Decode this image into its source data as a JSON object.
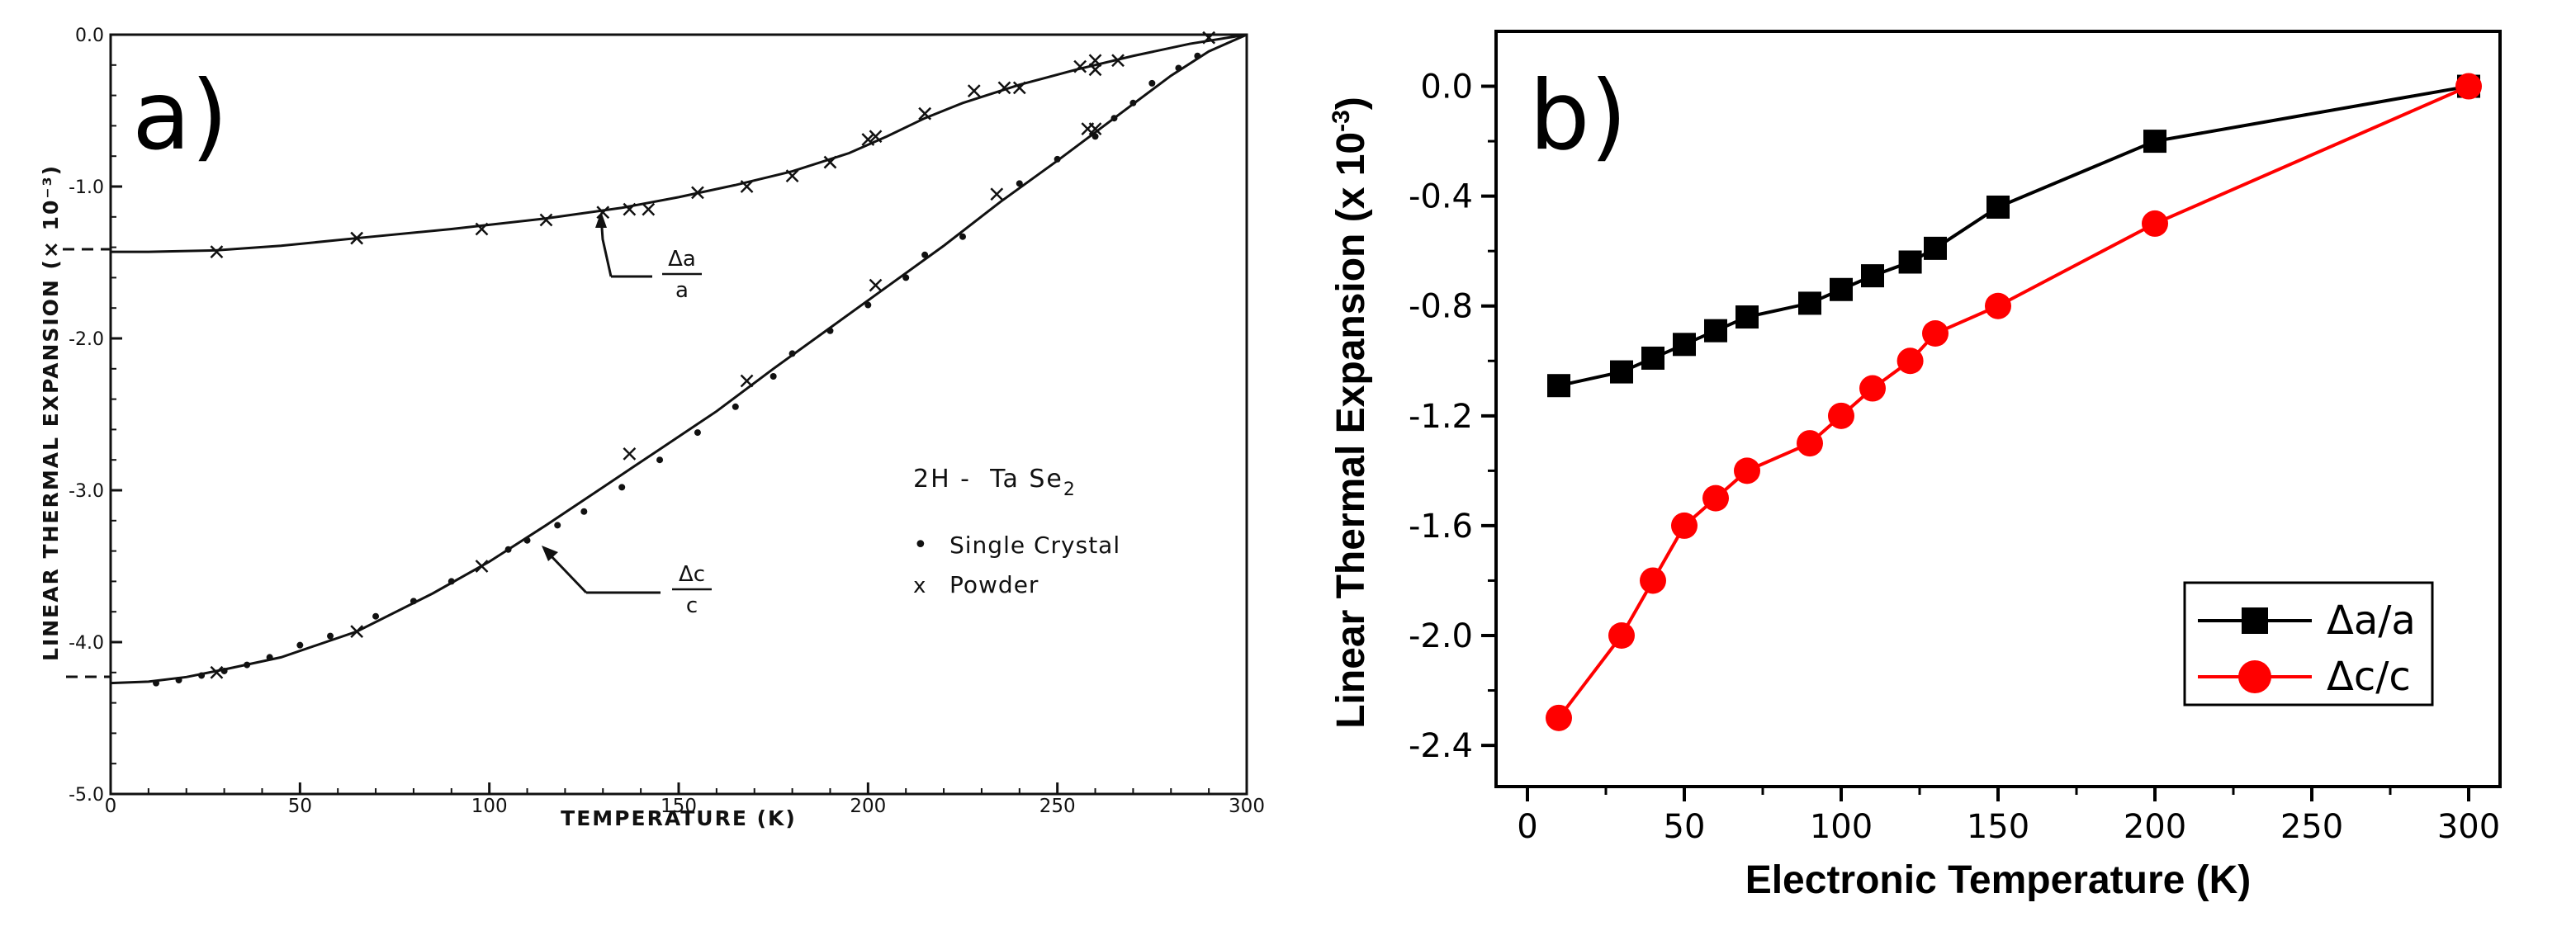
{
  "chart_data": [
    {
      "panel_label": "a)",
      "type": "scatter",
      "title": "",
      "xlabel": "TEMPERATURE  (K)",
      "ylabel": "LINEAR THERMAL EXPANSION (× 10⁻³)",
      "xlim": [
        0,
        300
      ],
      "ylim": [
        -5.0,
        0.0
      ],
      "x_ticks": [
        "0",
        "50",
        "100",
        "150",
        "200",
        "250",
        "300"
      ],
      "y_ticks": [
        "0.0",
        "-1.0",
        "-2.0",
        "-3.0",
        "-4.0",
        "-5.0"
      ],
      "legend_title": "2H -  Ta Se",
      "legend_title_subscript": "2",
      "legend_entries": [
        {
          "symbol": "•",
          "label": "Single Crystal"
        },
        {
          "symbol": "x",
          "label": "Powder"
        }
      ],
      "annotations": [
        {
          "numerator": "Δa",
          "denominator": "a",
          "curve": "a"
        },
        {
          "numerator": "Δc",
          "denominator": "c",
          "curve": "c"
        }
      ],
      "series": [
        {
          "name": "Δa/a fit",
          "kind": "curve",
          "x": [
            0,
            10,
            28,
            45,
            65,
            90,
            115,
            135,
            150,
            165,
            180,
            195,
            205,
            215,
            225,
            240,
            255,
            270,
            285,
            300
          ],
          "y": [
            -1.43,
            -1.43,
            -1.42,
            -1.39,
            -1.34,
            -1.28,
            -1.21,
            -1.14,
            -1.07,
            -0.99,
            -0.9,
            -0.78,
            -0.67,
            -0.55,
            -0.45,
            -0.33,
            -0.23,
            -0.14,
            -0.06,
            0.0
          ]
        },
        {
          "name": "Δa/a powder",
          "kind": "x-marks",
          "x": [
            28,
            65,
            98,
            115,
            130,
            137,
            142,
            155,
            168,
            180,
            190,
            200,
            202,
            215,
            228,
            236,
            240,
            256,
            260,
            260,
            266
          ],
          "y": [
            -1.43,
            -1.34,
            -1.28,
            -1.22,
            -1.17,
            -1.15,
            -1.15,
            -1.04,
            -1.0,
            -0.93,
            -0.84,
            -0.69,
            -0.67,
            -0.52,
            -0.37,
            -0.35,
            -0.35,
            -0.21,
            -0.17,
            -0.23,
            -0.17
          ]
        },
        {
          "name": "Δc/c fit",
          "kind": "curve",
          "x": [
            0,
            10,
            20,
            30,
            45,
            65,
            85,
            100,
            115,
            130,
            145,
            160,
            175,
            190,
            205,
            220,
            235,
            250,
            265,
            280,
            290,
            300
          ],
          "y": [
            -4.27,
            -4.26,
            -4.23,
            -4.18,
            -4.1,
            -3.93,
            -3.68,
            -3.47,
            -3.23,
            -2.98,
            -2.73,
            -2.48,
            -2.2,
            -1.93,
            -1.66,
            -1.39,
            -1.1,
            -0.83,
            -0.55,
            -0.27,
            -0.11,
            0.0
          ]
        },
        {
          "name": "Δc/c single crystal",
          "kind": "dots",
          "x": [
            12,
            18,
            24,
            30,
            36,
            42,
            50,
            58,
            70,
            80,
            90,
            105,
            110,
            118,
            125,
            135,
            145,
            155,
            165,
            175,
            180,
            190,
            200,
            210,
            215,
            225,
            240,
            250,
            260,
            265,
            270,
            275,
            282,
            287
          ],
          "y": [
            -4.27,
            -4.25,
            -4.22,
            -4.19,
            -4.15,
            -4.1,
            -4.02,
            -3.96,
            -3.83,
            -3.73,
            -3.6,
            -3.39,
            -3.33,
            -3.23,
            -3.14,
            -2.98,
            -2.8,
            -2.62,
            -2.45,
            -2.25,
            -2.1,
            -1.95,
            -1.78,
            -1.6,
            -1.45,
            -1.33,
            -0.98,
            -0.82,
            -0.67,
            -0.55,
            -0.45,
            -0.32,
            -0.22,
            -0.14
          ]
        },
        {
          "name": "Δc/c powder",
          "kind": "x-marks",
          "x": [
            28,
            65,
            98,
            137,
            168,
            202,
            234,
            258,
            260,
            290
          ],
          "y": [
            -4.2,
            -3.93,
            -3.5,
            -2.76,
            -2.28,
            -1.65,
            -1.05,
            -0.62,
            -0.62,
            -0.02
          ]
        }
      ]
    },
    {
      "panel_label": "b)",
      "type": "line",
      "title": "",
      "xlabel": "Electronic Temperature (K)",
      "ylabel": "Linear Thermal Expansion (x 10",
      "ylabel_exponent": "-3",
      "ylabel_close": ")",
      "xlim": [
        -10,
        310
      ],
      "ylim": [
        -2.55,
        0.2
      ],
      "x_ticks": [
        "0",
        "50",
        "100",
        "150",
        "200",
        "250",
        "300"
      ],
      "y_ticks": [
        "0.0",
        "-0.4",
        "-0.8",
        "-1.2",
        "-1.6",
        "-2.0",
        "-2.4"
      ],
      "legend_position": "bottom-right",
      "series": [
        {
          "name": "Δa/a",
          "color": "#000000",
          "marker": "square",
          "x": [
            10,
            30,
            40,
            50,
            60,
            70,
            90,
            100,
            110,
            122,
            130,
            150,
            200,
            300
          ],
          "y": [
            -1.09,
            -1.04,
            -0.99,
            -0.94,
            -0.89,
            -0.84,
            -0.79,
            -0.74,
            -0.69,
            -0.64,
            -0.59,
            -0.44,
            -0.2,
            0.0
          ]
        },
        {
          "name": "Δc/c",
          "color": "#ff0000",
          "marker": "circle",
          "x": [
            10,
            30,
            40,
            50,
            60,
            70,
            90,
            100,
            110,
            122,
            130,
            150,
            200,
            300
          ],
          "y": [
            -2.3,
            -2.0,
            -1.8,
            -1.6,
            -1.5,
            -1.4,
            -1.3,
            -1.2,
            -1.1,
            -1.0,
            -0.9,
            -0.8,
            -0.5,
            0.0
          ]
        }
      ]
    }
  ]
}
